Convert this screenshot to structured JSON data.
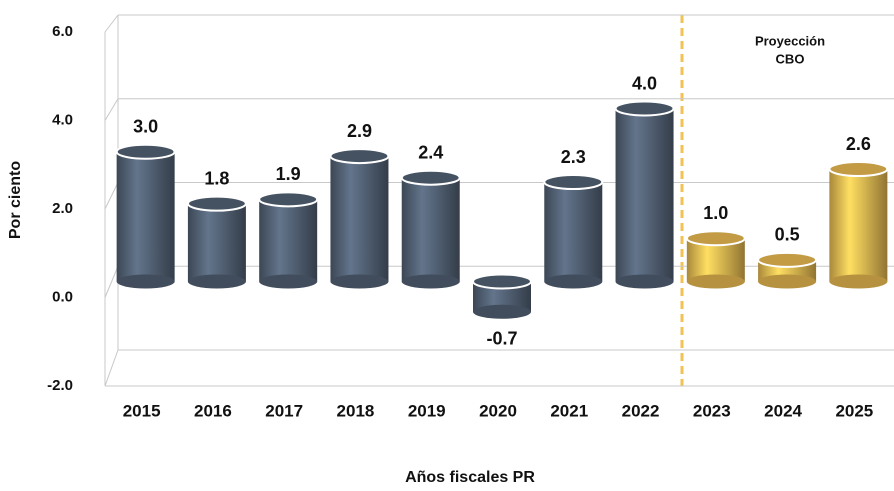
{
  "chart_data": {
    "type": "bar",
    "y_label": "Por ciento",
    "x_label": "Años fiscales PR",
    "annotation": [
      "Proyección",
      "CBO"
    ],
    "categories": [
      "2015",
      "2016",
      "2017",
      "2018",
      "2019",
      "2020",
      "2021",
      "2022",
      "2023",
      "2024",
      "2025"
    ],
    "values": [
      3.0,
      1.8,
      1.9,
      2.9,
      2.4,
      -0.7,
      2.3,
      4.0,
      1.0,
      0.5,
      2.6
    ],
    "value_labels": [
      "3.0",
      "1.8",
      "1.9",
      "2.9",
      "2.4",
      "-0.7",
      "2.3",
      "4.0",
      "1.0",
      "0.5",
      "2.6"
    ],
    "colors": [
      "#56667a",
      "#56667a",
      "#56667a",
      "#56667a",
      "#56667a",
      "#56667a",
      "#56667a",
      "#56667a",
      "#f2c255",
      "#f2c255",
      "#f2c255"
    ],
    "ylim": [
      -2,
      6
    ],
    "yticks": [
      {
        "value": -2,
        "label": "-2.0"
      },
      {
        "value": 0,
        "label": "0.0"
      },
      {
        "value": 2,
        "label": "2.0"
      },
      {
        "value": 4,
        "label": "4.0"
      },
      {
        "value": 6,
        "label": "6.0"
      }
    ],
    "grid": true
  }
}
